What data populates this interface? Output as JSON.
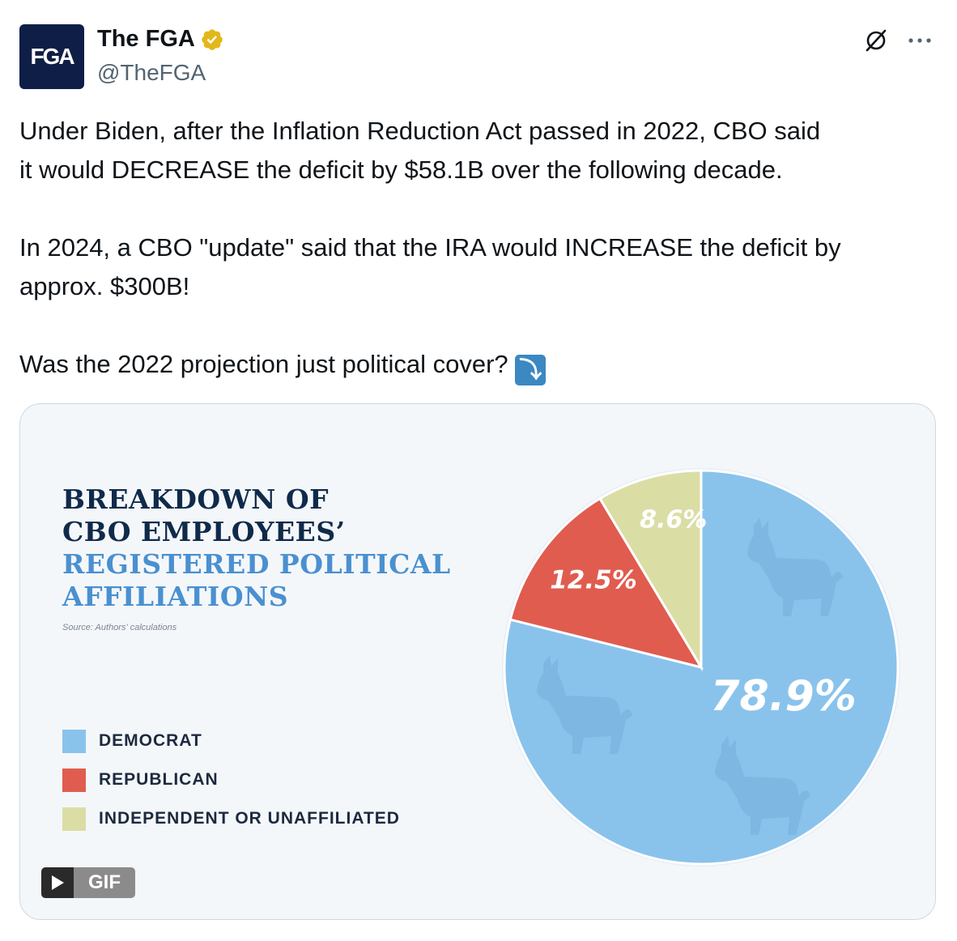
{
  "author": {
    "avatar_text": "FGA",
    "display_name": "The FGA",
    "handle": "@TheFGA",
    "verified_icon": "verified-badge-icon"
  },
  "actions": {
    "grok_icon": "grok-icon",
    "more_icon": "more-icon"
  },
  "tweet": {
    "line1": "Under Biden, after the Inflation Reduction Act passed in 2022, CBO said",
    "line2": "it would DECREASE the deficit by $58.1B over the following decade.",
    "line3": "In 2024, a CBO \"update\" said that the IRA would INCREASE the deficit by",
    "line4": "approx. $300B!",
    "line5": "Was the 2022 projection just political cover?",
    "emoji": "⤵"
  },
  "media": {
    "gif_label": "GIF",
    "play_icon": "play-icon"
  },
  "chart_data": {
    "type": "pie",
    "title_line1": "BREAKDOWN OF",
    "title_line2": "CBO EMPLOYEES’",
    "title_line3": "REGISTERED POLITICAL",
    "title_line4": "AFFILIATIONS",
    "source": "Source: Authors' calculations",
    "categories": [
      "DEMOCRAT",
      "REPUBLICAN",
      "INDEPENDENT OR UNAFFILIATED"
    ],
    "values": [
      78.9,
      12.5,
      8.6
    ],
    "data_labels": [
      "78.9%",
      "12.5%",
      "8.6%"
    ],
    "colors": [
      "#89c3ec",
      "#e05c4f",
      "#dadea5"
    ],
    "legend_placement": "left",
    "slice_order": "starts at 12 o'clock, independent then republican counter-clockwise, democrat clockwise"
  }
}
